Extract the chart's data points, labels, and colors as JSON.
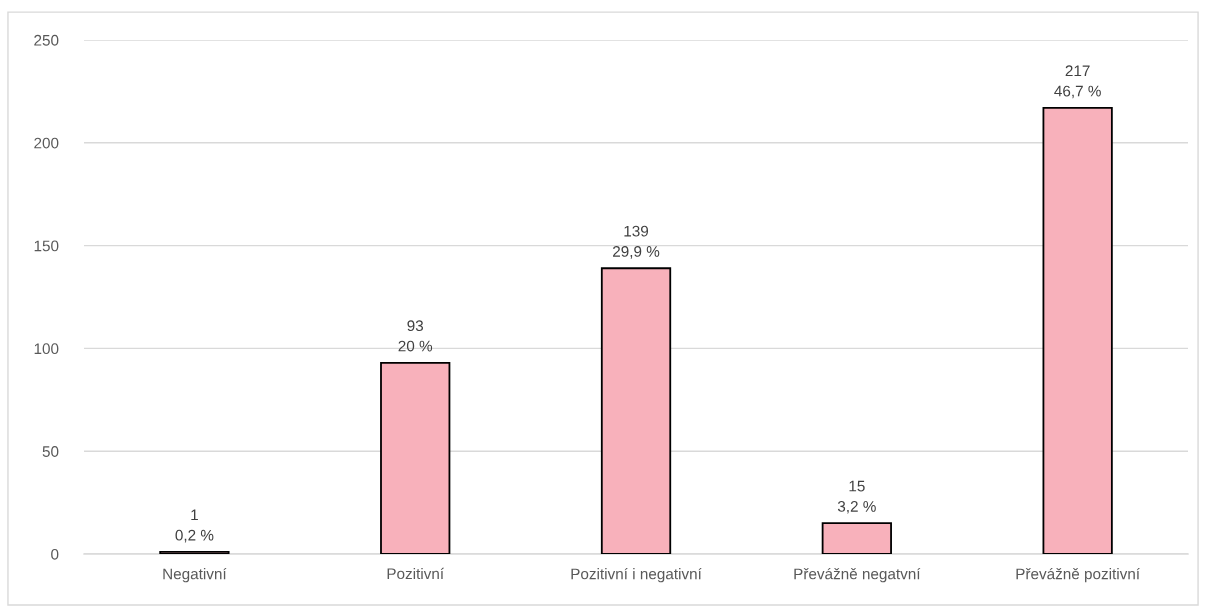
{
  "chart_data": {
    "type": "bar",
    "categories": [
      "Negativní",
      "Pozitivní",
      "Pozitivní i negativní",
      "Převážně negatvní",
      "Převážně pozitivní"
    ],
    "values": [
      1,
      93,
      139,
      15,
      217
    ],
    "value_labels": [
      "1\n0,2 %",
      "93\n20 %",
      "139\n29,9 %",
      "15\n3,2 %",
      "217\n46,7 %"
    ],
    "color": "#f8b1bb",
    "ylim": [
      0,
      250
    ],
    "yticks": [
      0,
      50,
      100,
      150,
      200,
      250
    ],
    "grid": "y",
    "legend": false
  }
}
